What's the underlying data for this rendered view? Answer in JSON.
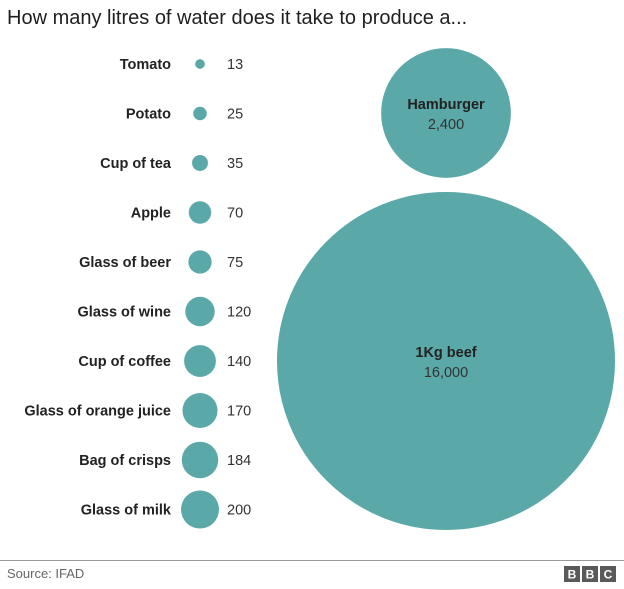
{
  "title": "How many litres of water does it take to produce a...",
  "source": "Source: IFAD",
  "logo": {
    "text": "BBC",
    "color": "#5a5a5a"
  },
  "colors": {
    "bubble": "#5aa8a7",
    "bubble_stroke": "#ffffff",
    "label": "#222222",
    "value": "#333333"
  },
  "chart_data": {
    "type": "bubble",
    "title": "How many litres of water does it take to produce a...",
    "unit": "litres",
    "items": [
      {
        "label": "Tomato",
        "value": 13
      },
      {
        "label": "Potato",
        "value": 25
      },
      {
        "label": "Cup of tea",
        "value": 35
      },
      {
        "label": "Apple",
        "value": 70
      },
      {
        "label": "Glass of beer",
        "value": 75
      },
      {
        "label": "Glass of wine",
        "value": 120
      },
      {
        "label": "Cup of coffee",
        "value": 140
      },
      {
        "label": "Glass of orange juice",
        "value": 170
      },
      {
        "label": "Bag of crisps",
        "value": 184
      },
      {
        "label": "Glass of milk",
        "value": 200
      }
    ],
    "large_items": [
      {
        "label": "Hamburger",
        "value": 2400,
        "value_label": "2,400"
      },
      {
        "label": "1Kg beef",
        "value": 16000,
        "value_label": "16,000"
      }
    ]
  }
}
